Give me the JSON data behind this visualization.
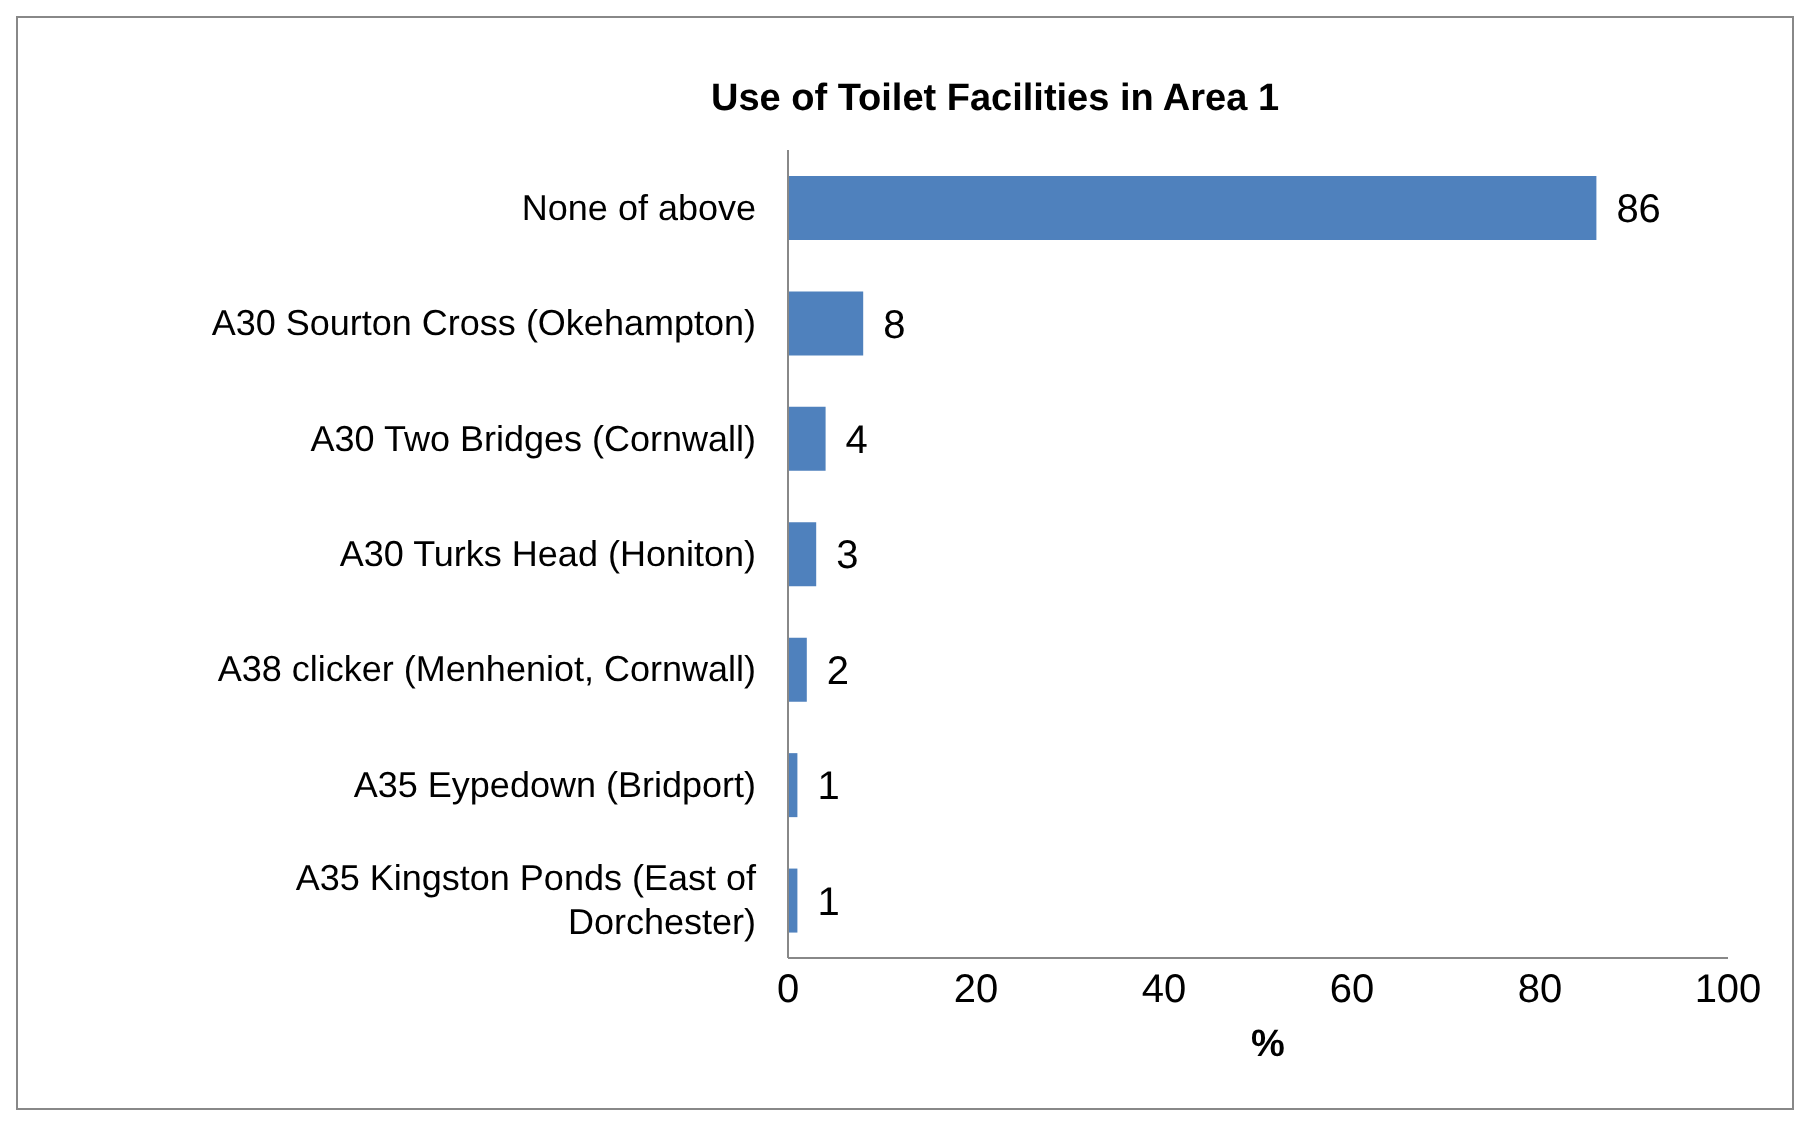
{
  "chart_data": {
    "type": "bar",
    "orientation": "horizontal",
    "title": "Use  of Toilet Facilities in Area 1",
    "xlabel": "%",
    "categories": [
      "None of above",
      "A30 Sourton Cross (Okehampton)",
      "A30 Two Bridges (Cornwall)",
      "A30 Turks Head (Honiton)",
      "A38 clicker (Menheniot, Cornwall)",
      "A35 Eypedown (Bridport)",
      "A35 Kingston Ponds (East of Dorchester)"
    ],
    "values": [
      86,
      8,
      4,
      3,
      2,
      1,
      1
    ],
    "color": "#4f81bd",
    "xlim": [
      0,
      100
    ],
    "xticks": [
      0,
      20,
      40,
      60,
      80,
      100
    ],
    "data_labels": true
  }
}
